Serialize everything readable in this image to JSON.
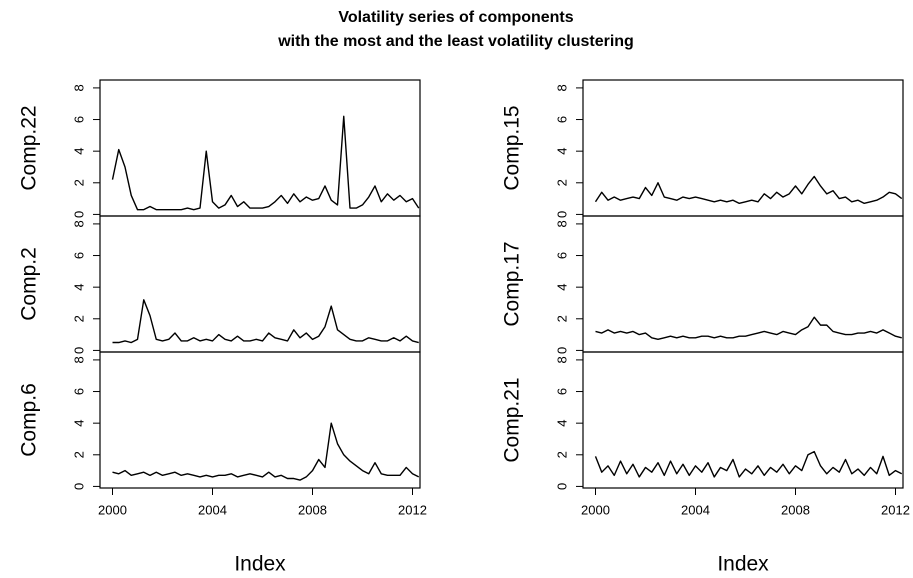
{
  "title": [
    "Volatility series of components",
    "with the most and the least volatility clustering"
  ],
  "chart_data": [
    {
      "type": "line",
      "ylabel": "Comp.22",
      "color": "#000000",
      "x": [
        2000,
        2000.25,
        2000.5,
        2000.75,
        2001,
        2001.25,
        2001.5,
        2001.75,
        2002,
        2002.25,
        2002.5,
        2002.75,
        2003,
        2003.25,
        2003.5,
        2003.75,
        2004,
        2004.25,
        2004.5,
        2004.75,
        2005,
        2005.25,
        2005.5,
        2005.75,
        2006,
        2006.25,
        2006.5,
        2006.75,
        2007,
        2007.25,
        2007.5,
        2007.75,
        2008,
        2008.25,
        2008.5,
        2008.75,
        2009,
        2009.25,
        2009.5,
        2009.75,
        2010,
        2010.25,
        2010.5,
        2010.75,
        2011,
        2011.25,
        2011.5,
        2011.75,
        2012,
        2012.25
      ],
      "values": [
        2.2,
        4.1,
        3.0,
        1.2,
        0.3,
        0.3,
        0.5,
        0.3,
        0.3,
        0.3,
        0.3,
        0.3,
        0.4,
        0.3,
        0.4,
        4.0,
        0.8,
        0.4,
        0.6,
        1.2,
        0.5,
        0.8,
        0.4,
        0.4,
        0.4,
        0.5,
        0.8,
        1.2,
        0.7,
        1.3,
        0.8,
        1.1,
        0.9,
        1.0,
        1.8,
        0.9,
        0.6,
        6.2,
        0.4,
        0.4,
        0.6,
        1.1,
        1.8,
        0.8,
        1.3,
        0.9,
        1.2,
        0.8,
        1.0,
        0.4
      ],
      "xlim": [
        1999.5,
        2012.3
      ],
      "ylim": [
        -0.1,
        8.5
      ],
      "yticks": [
        0,
        2,
        4,
        6,
        8
      ]
    },
    {
      "type": "line",
      "ylabel": "Comp.2",
      "color": "#000000",
      "x": [
        2000,
        2000.25,
        2000.5,
        2000.75,
        2001,
        2001.25,
        2001.5,
        2001.75,
        2002,
        2002.25,
        2002.5,
        2002.75,
        2003,
        2003.25,
        2003.5,
        2003.75,
        2004,
        2004.25,
        2004.5,
        2004.75,
        2005,
        2005.25,
        2005.5,
        2005.75,
        2006,
        2006.25,
        2006.5,
        2006.75,
        2007,
        2007.25,
        2007.5,
        2007.75,
        2008,
        2008.25,
        2008.5,
        2008.75,
        2009,
        2009.25,
        2009.5,
        2009.75,
        2010,
        2010.25,
        2010.5,
        2010.75,
        2011,
        2011.25,
        2011.5,
        2011.75,
        2012,
        2012.25
      ],
      "values": [
        0.5,
        0.5,
        0.6,
        0.5,
        0.7,
        3.2,
        2.2,
        0.7,
        0.6,
        0.7,
        1.1,
        0.6,
        0.6,
        0.8,
        0.6,
        0.7,
        0.6,
        1.0,
        0.7,
        0.6,
        0.9,
        0.6,
        0.6,
        0.7,
        0.6,
        1.1,
        0.8,
        0.7,
        0.6,
        1.3,
        0.8,
        1.1,
        0.7,
        0.9,
        1.5,
        2.8,
        1.3,
        1.0,
        0.7,
        0.6,
        0.6,
        0.8,
        0.7,
        0.6,
        0.6,
        0.8,
        0.6,
        0.9,
        0.6,
        0.5
      ],
      "xlim": [
        1999.5,
        2012.3
      ],
      "ylim": [
        -0.1,
        8.5
      ],
      "yticks": [
        0,
        2,
        4,
        6,
        8
      ]
    },
    {
      "type": "line",
      "ylabel": "Comp.6",
      "color": "#000000",
      "xlabel": "Index",
      "x": [
        2000,
        2000.25,
        2000.5,
        2000.75,
        2001,
        2001.25,
        2001.5,
        2001.75,
        2002,
        2002.25,
        2002.5,
        2002.75,
        2003,
        2003.25,
        2003.5,
        2003.75,
        2004,
        2004.25,
        2004.5,
        2004.75,
        2005,
        2005.25,
        2005.5,
        2005.75,
        2006,
        2006.25,
        2006.5,
        2006.75,
        2007,
        2007.25,
        2007.5,
        2007.75,
        2008,
        2008.25,
        2008.5,
        2008.75,
        2009,
        2009.25,
        2009.5,
        2009.75,
        2010,
        2010.25,
        2010.5,
        2010.75,
        2011,
        2011.25,
        2011.5,
        2011.75,
        2012,
        2012.25
      ],
      "values": [
        0.9,
        0.8,
        1.0,
        0.7,
        0.8,
        0.9,
        0.7,
        0.9,
        0.7,
        0.8,
        0.9,
        0.7,
        0.8,
        0.7,
        0.6,
        0.7,
        0.6,
        0.7,
        0.7,
        0.8,
        0.6,
        0.7,
        0.8,
        0.7,
        0.6,
        0.9,
        0.6,
        0.7,
        0.5,
        0.5,
        0.4,
        0.6,
        1.0,
        1.7,
        1.2,
        4.0,
        2.7,
        2.0,
        1.6,
        1.3,
        1.0,
        0.8,
        1.5,
        0.8,
        0.7,
        0.7,
        0.7,
        1.2,
        0.8,
        0.6
      ],
      "xlim": [
        1999.5,
        2012.3
      ],
      "ylim": [
        -0.1,
        8.5
      ],
      "yticks": [
        0,
        2,
        4,
        6,
        8
      ],
      "xticks": [
        2000,
        2004,
        2008,
        2012
      ]
    },
    {
      "type": "line",
      "ylabel": "Comp.15",
      "color": "#000000",
      "x": [
        2000,
        2000.25,
        2000.5,
        2000.75,
        2001,
        2001.25,
        2001.5,
        2001.75,
        2002,
        2002.25,
        2002.5,
        2002.75,
        2003,
        2003.25,
        2003.5,
        2003.75,
        2004,
        2004.25,
        2004.5,
        2004.75,
        2005,
        2005.25,
        2005.5,
        2005.75,
        2006,
        2006.25,
        2006.5,
        2006.75,
        2007,
        2007.25,
        2007.5,
        2007.75,
        2008,
        2008.25,
        2008.5,
        2008.75,
        2009,
        2009.25,
        2009.5,
        2009.75,
        2010,
        2010.25,
        2010.5,
        2010.75,
        2011,
        2011.25,
        2011.5,
        2011.75,
        2012,
        2012.25
      ],
      "values": [
        0.8,
        1.4,
        0.9,
        1.1,
        0.9,
        1.0,
        1.1,
        1.0,
        1.7,
        1.2,
        2.0,
        1.1,
        1.0,
        0.9,
        1.1,
        1.0,
        1.1,
        1.0,
        0.9,
        0.8,
        0.9,
        0.8,
        0.9,
        0.7,
        0.8,
        0.9,
        0.8,
        1.3,
        1.0,
        1.4,
        1.1,
        1.3,
        1.8,
        1.3,
        1.9,
        2.4,
        1.8,
        1.3,
        1.5,
        1.0,
        1.1,
        0.8,
        0.9,
        0.7,
        0.8,
        0.9,
        1.1,
        1.4,
        1.3,
        1.0
      ],
      "xlim": [
        1999.5,
        2012.3
      ],
      "ylim": [
        -0.1,
        8.5
      ],
      "yticks": [
        0,
        2,
        4,
        6,
        8
      ]
    },
    {
      "type": "line",
      "ylabel": "Comp.17",
      "color": "#000000",
      "x": [
        2000,
        2000.25,
        2000.5,
        2000.75,
        2001,
        2001.25,
        2001.5,
        2001.75,
        2002,
        2002.25,
        2002.5,
        2002.75,
        2003,
        2003.25,
        2003.5,
        2003.75,
        2004,
        2004.25,
        2004.5,
        2004.75,
        2005,
        2005.25,
        2005.5,
        2005.75,
        2006,
        2006.25,
        2006.5,
        2006.75,
        2007,
        2007.25,
        2007.5,
        2007.75,
        2008,
        2008.25,
        2008.5,
        2008.75,
        2009,
        2009.25,
        2009.5,
        2009.75,
        2010,
        2010.25,
        2010.5,
        2010.75,
        2011,
        2011.25,
        2011.5,
        2011.75,
        2012,
        2012.25
      ],
      "values": [
        1.2,
        1.1,
        1.3,
        1.1,
        1.2,
        1.1,
        1.2,
        1.0,
        1.1,
        0.8,
        0.7,
        0.8,
        0.9,
        0.8,
        0.9,
        0.8,
        0.8,
        0.9,
        0.9,
        0.8,
        0.9,
        0.8,
        0.8,
        0.9,
        0.9,
        1.0,
        1.1,
        1.2,
        1.1,
        1.0,
        1.2,
        1.1,
        1.0,
        1.3,
        1.5,
        2.1,
        1.6,
        1.6,
        1.2,
        1.1,
        1.0,
        1.0,
        1.1,
        1.1,
        1.2,
        1.1,
        1.3,
        1.1,
        0.9,
        0.8
      ],
      "xlim": [
        1999.5,
        2012.3
      ],
      "ylim": [
        -0.1,
        8.5
      ],
      "yticks": [
        0,
        2,
        4,
        6,
        8
      ]
    },
    {
      "type": "line",
      "ylabel": "Comp.21",
      "color": "#000000",
      "xlabel": "Index",
      "x": [
        2000,
        2000.25,
        2000.5,
        2000.75,
        2001,
        2001.25,
        2001.5,
        2001.75,
        2002,
        2002.25,
        2002.5,
        2002.75,
        2003,
        2003.25,
        2003.5,
        2003.75,
        2004,
        2004.25,
        2004.5,
        2004.75,
        2005,
        2005.25,
        2005.5,
        2005.75,
        2006,
        2006.25,
        2006.5,
        2006.75,
        2007,
        2007.25,
        2007.5,
        2007.75,
        2008,
        2008.25,
        2008.5,
        2008.75,
        2009,
        2009.25,
        2009.5,
        2009.75,
        2010,
        2010.25,
        2010.5,
        2010.75,
        2011,
        2011.25,
        2011.5,
        2011.75,
        2012,
        2012.25
      ],
      "values": [
        1.9,
        0.9,
        1.3,
        0.7,
        1.6,
        0.8,
        1.4,
        0.6,
        1.2,
        0.9,
        1.5,
        0.7,
        1.6,
        0.8,
        1.4,
        0.7,
        1.3,
        0.9,
        1.5,
        0.6,
        1.2,
        1.0,
        1.7,
        0.6,
        1.1,
        0.8,
        1.3,
        0.7,
        1.2,
        0.9,
        1.4,
        0.8,
        1.3,
        1.0,
        2.0,
        2.2,
        1.3,
        0.8,
        1.2,
        0.9,
        1.7,
        0.8,
        1.1,
        0.7,
        1.2,
        0.8,
        1.9,
        0.7,
        1.0,
        0.8
      ],
      "xlim": [
        1999.5,
        2012.3
      ],
      "ylim": [
        -0.1,
        8.5
      ],
      "yticks": [
        0,
        2,
        4,
        6,
        8
      ],
      "xticks": [
        2000,
        2004,
        2008,
        2012
      ]
    }
  ]
}
